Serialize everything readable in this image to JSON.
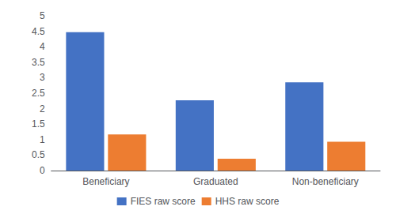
{
  "chart_data": {
    "type": "bar",
    "categories": [
      "Beneficiary",
      "Graduated",
      "Non-beneficiary"
    ],
    "series": [
      {
        "name": "FIES raw score",
        "color": "#4472C4",
        "values": [
          4.47,
          2.27,
          2.85
        ]
      },
      {
        "name": "HHS raw score",
        "color": "#ED7D31",
        "values": [
          1.17,
          0.38,
          0.93
        ]
      }
    ],
    "ylim": [
      0,
      5
    ],
    "yticks": [
      0,
      0.5,
      1,
      1.5,
      2,
      2.5,
      3,
      3.5,
      4,
      4.5,
      5
    ],
    "grid": false,
    "legend": "bottom"
  }
}
